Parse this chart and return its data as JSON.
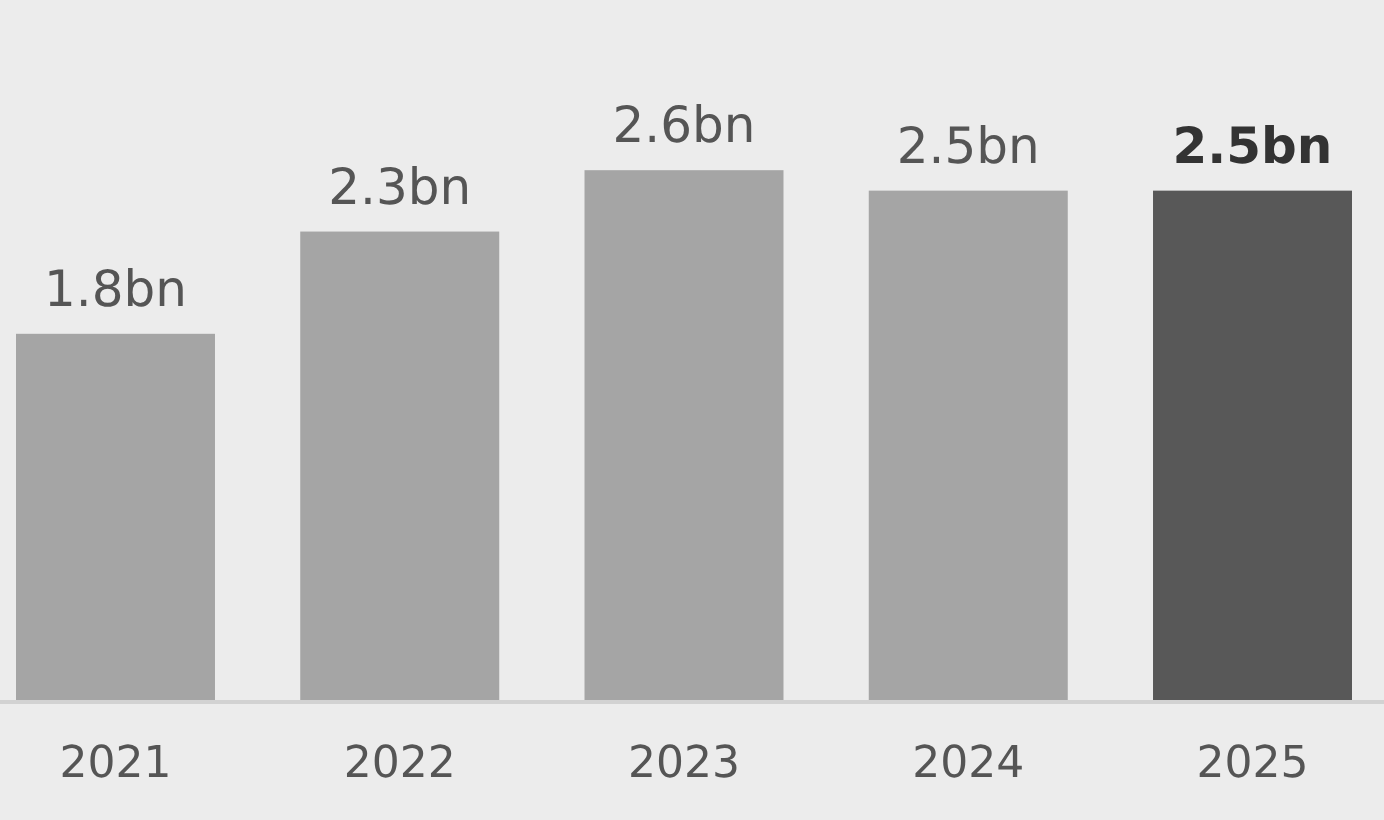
{
  "chart_data": {
    "type": "bar",
    "categories": [
      "2021",
      "2022",
      "2023",
      "2024",
      "2025"
    ],
    "values": [
      1.8,
      2.3,
      2.6,
      2.5,
      2.5
    ],
    "value_labels": [
      "1.8bn",
      "2.3bn",
      "2.6bn",
      "2.5bn",
      "2.5bn"
    ],
    "colors": [
      "#a5a5a5",
      "#a5a5a5",
      "#a5a5a5",
      "#a5a5a5",
      "#585858"
    ]
  }
}
